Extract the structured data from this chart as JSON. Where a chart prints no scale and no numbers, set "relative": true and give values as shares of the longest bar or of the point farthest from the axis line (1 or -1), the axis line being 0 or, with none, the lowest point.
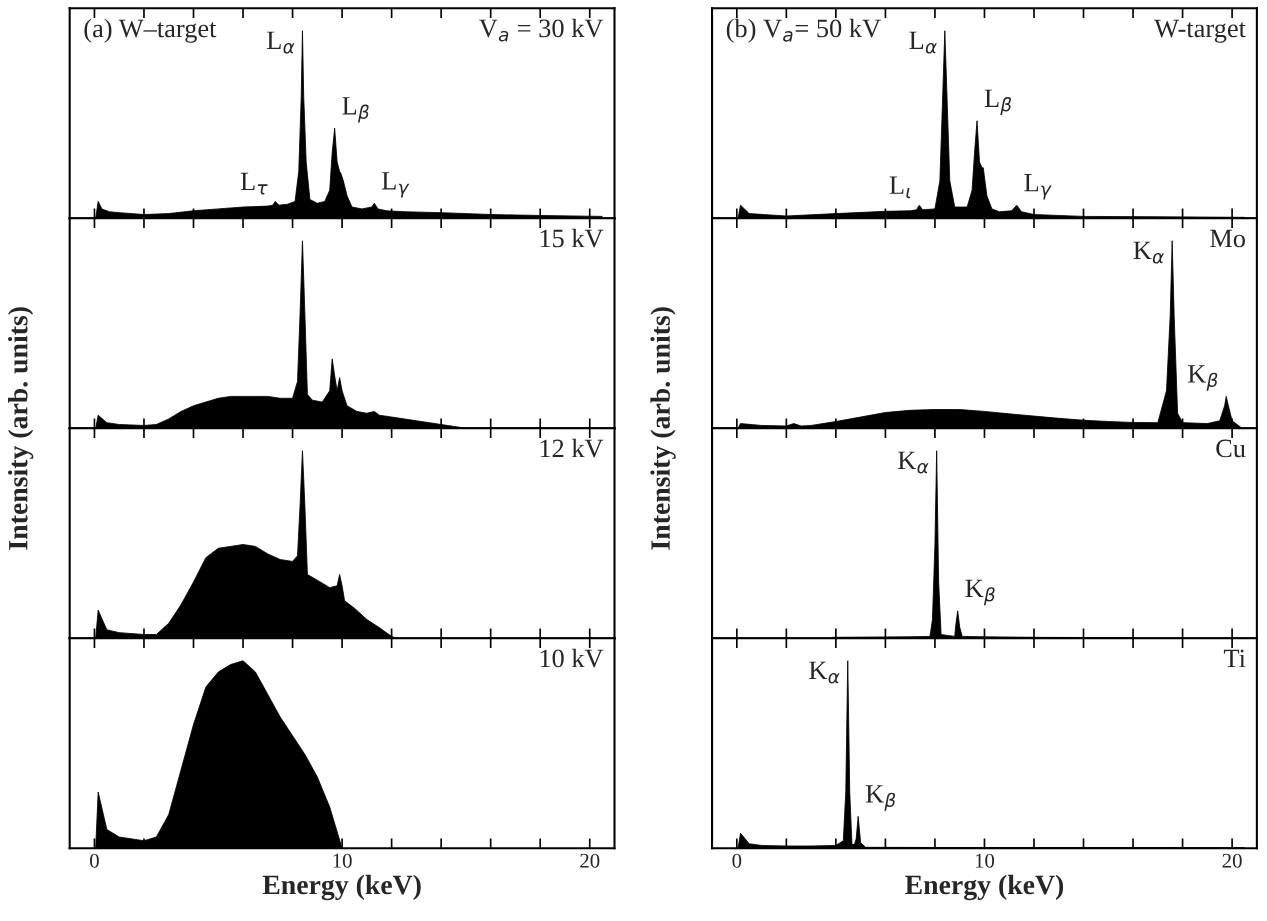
{
  "chart_data": [
    {
      "type": "area",
      "relative": true,
      "xlim": [
        -1,
        21
      ],
      "xticks": [
        0,
        {
          "value": 2,
          "label": null
        },
        {
          "value": 4,
          "label": null
        },
        {
          "value": 6,
          "label": null
        },
        {
          "value": 8,
          "label": null
        },
        10,
        {
          "value": 12,
          "label": null
        },
        {
          "value": 14,
          "label": null
        },
        {
          "value": 16,
          "label": null
        },
        {
          "value": 18,
          "label": null
        },
        20
      ],
      "tick_labels": false,
      "x": [
        0.05,
        0.15,
        0.3,
        0.6,
        1,
        2,
        3,
        4,
        5,
        6,
        7,
        7.2,
        7.3,
        7.45,
        7.8,
        8.1,
        8.25,
        8.35,
        8.4,
        8.45,
        8.55,
        8.7,
        9.0,
        9.3,
        9.5,
        9.6,
        9.7,
        9.8,
        9.9,
        9.95,
        10.05,
        10.2,
        10.4,
        10.8,
        11.2,
        11.3,
        11.45,
        11.8,
        12.5,
        14,
        16,
        18,
        20.5
      ],
      "series": [
        {
          "color": "#000000",
          "values": [
            0.0,
            0.09,
            0.05,
            0.035,
            0.03,
            0.02,
            0.025,
            0.04,
            0.05,
            0.06,
            0.065,
            0.07,
            0.09,
            0.07,
            0.075,
            0.09,
            0.25,
            0.65,
            1.0,
            0.65,
            0.3,
            0.1,
            0.08,
            0.09,
            0.15,
            0.35,
            0.48,
            0.3,
            0.25,
            0.24,
            0.2,
            0.12,
            0.06,
            0.05,
            0.06,
            0.08,
            0.05,
            0.04,
            0.035,
            0.03,
            0.02,
            0.015,
            0.01
          ]
        }
      ],
      "annotations": [
        "(a) W–target",
        "V$_{a}$ = 30 kV",
        {
          "text": "L$_{α}$",
          "x": 8.4,
          "y": 1.0
        },
        {
          "text": "L$_{β}$",
          "x": 9.7,
          "y": 0.48
        },
        {
          "text": "L$_{τ}$",
          "x": 7.3,
          "y": 0.09
        },
        {
          "text": "L$_{γ}$",
          "x": 11.3,
          "y": 0.08
        }
      ]
    },
    {
      "type": "area",
      "relative": true,
      "xlim": [
        -1,
        21
      ],
      "xticks": [
        0,
        {
          "value": 2,
          "label": null
        },
        {
          "value": 4,
          "label": null
        },
        {
          "value": 6,
          "label": null
        },
        {
          "value": 8,
          "label": null
        },
        10,
        {
          "value": 12,
          "label": null
        },
        {
          "value": 14,
          "label": null
        },
        {
          "value": 16,
          "label": null
        },
        {
          "value": 18,
          "label": null
        },
        20
      ],
      "tick_labels": false,
      "ylabel": "Intensity (arb. units)",
      "x": [
        0.05,
        0.15,
        0.5,
        1,
        2,
        2.5,
        3,
        3.5,
        4,
        4.5,
        5,
        5.5,
        6,
        6.5,
        7,
        7.5,
        8,
        8.2,
        8.3,
        8.4,
        8.5,
        8.6,
        8.8,
        9.2,
        9.5,
        9.6,
        9.7,
        9.8,
        9.9,
        10.0,
        10.2,
        10.6,
        11.0,
        11.3,
        11.5,
        12,
        13,
        14,
        15
      ],
      "series": [
        {
          "color": "#000000",
          "values": [
            0,
            0.07,
            0.03,
            0.02,
            0.015,
            0.02,
            0.05,
            0.09,
            0.12,
            0.14,
            0.16,
            0.17,
            0.17,
            0.17,
            0.17,
            0.16,
            0.16,
            0.25,
            0.6,
            1.0,
            0.6,
            0.18,
            0.15,
            0.14,
            0.2,
            0.37,
            0.28,
            0.2,
            0.27,
            0.2,
            0.12,
            0.09,
            0.08,
            0.09,
            0.07,
            0.06,
            0.04,
            0.02,
            0.0
          ]
        }
      ],
      "annotations": [
        "15 kV"
      ]
    },
    {
      "type": "area",
      "relative": true,
      "xlim": [
        -1,
        21
      ],
      "xticks": [
        0,
        {
          "value": 2,
          "label": null
        },
        {
          "value": 4,
          "label": null
        },
        {
          "value": 6,
          "label": null
        },
        {
          "value": 8,
          "label": null
        },
        10,
        {
          "value": 12,
          "label": null
        },
        {
          "value": 14,
          "label": null
        },
        {
          "value": 16,
          "label": null
        },
        {
          "value": 18,
          "label": null
        },
        20
      ],
      "tick_labels": false,
      "x": [
        0.05,
        0.15,
        0.5,
        1,
        2,
        2.5,
        3,
        3.5,
        4,
        4.5,
        5,
        5.5,
        6,
        6.5,
        7,
        7.5,
        8,
        8.2,
        8.3,
        8.4,
        8.5,
        8.6,
        9,
        9.5,
        9.8,
        9.9,
        10.0,
        10.1,
        10.5,
        11,
        11.5,
        12,
        12.2
      ],
      "series": [
        {
          "color": "#000000",
          "values": [
            0,
            0.15,
            0.045,
            0.03,
            0.02,
            0.02,
            0.08,
            0.18,
            0.3,
            0.43,
            0.48,
            0.49,
            0.5,
            0.49,
            0.45,
            0.42,
            0.41,
            0.44,
            0.7,
            1.0,
            0.7,
            0.34,
            0.31,
            0.27,
            0.28,
            0.34,
            0.28,
            0.2,
            0.16,
            0.1,
            0.057,
            0.01,
            0.0
          ]
        }
      ],
      "annotations": [
        "12 kV"
      ]
    },
    {
      "type": "area",
      "relative": true,
      "xlim": [
        -1,
        21
      ],
      "xticks": [
        0,
        {
          "value": 2,
          "label": null
        },
        {
          "value": 4,
          "label": null
        },
        {
          "value": 6,
          "label": null
        },
        {
          "value": 8,
          "label": null
        },
        10,
        {
          "value": 12,
          "label": null
        },
        {
          "value": 14,
          "label": null
        },
        {
          "value": 16,
          "label": null
        },
        {
          "value": 18,
          "label": null
        },
        20
      ],
      "tick_labels": "x",
      "xlabel": "Energy (keV)",
      "x": [
        0.05,
        0.15,
        0.5,
        1,
        2,
        2.5,
        3,
        3.5,
        4,
        4.5,
        5,
        5.5,
        6,
        6.5,
        7,
        7.5,
        8,
        8.5,
        9,
        9.5,
        10
      ],
      "series": [
        {
          "color": "#000000",
          "values": [
            0,
            0.3,
            0.1,
            0.06,
            0.04,
            0.06,
            0.18,
            0.42,
            0.66,
            0.86,
            0.94,
            0.98,
            1.0,
            0.94,
            0.82,
            0.7,
            0.6,
            0.5,
            0.38,
            0.22,
            0
          ]
        }
      ],
      "annotations": [
        "10 kV"
      ]
    },
    {
      "type": "area",
      "relative": true,
      "xlim": [
        -1,
        21
      ],
      "xticks": [
        0,
        {
          "value": 2,
          "label": null
        },
        {
          "value": 4,
          "label": null
        },
        {
          "value": 6,
          "label": null
        },
        {
          "value": 8,
          "label": null
        },
        10,
        {
          "value": 12,
          "label": null
        },
        {
          "value": 14,
          "label": null
        },
        {
          "value": 16,
          "label": null
        },
        {
          "value": 18,
          "label": null
        },
        20
      ],
      "tick_labels": false,
      "x": [
        0.05,
        0.15,
        0.5,
        2,
        4,
        6,
        7,
        7.25,
        7.37,
        7.5,
        8,
        8.2,
        8.3,
        8.4,
        8.5,
        8.6,
        8.8,
        9.3,
        9.5,
        9.6,
        9.7,
        9.8,
        9.9,
        9.95,
        10.1,
        10.3,
        10.6,
        11.1,
        11.3,
        11.5,
        12,
        14,
        17,
        20.5
      ],
      "series": [
        {
          "color": "#000000",
          "values": [
            0,
            0.07,
            0.025,
            0.012,
            0.025,
            0.037,
            0.04,
            0.045,
            0.07,
            0.045,
            0.05,
            0.2,
            0.6,
            1.0,
            0.6,
            0.2,
            0.06,
            0.06,
            0.15,
            0.35,
            0.52,
            0.3,
            0.27,
            0.27,
            0.12,
            0.05,
            0.035,
            0.04,
            0.07,
            0.035,
            0.02,
            0.01,
            0.008,
            0.005
          ]
        }
      ],
      "annotations": [
        "(b) V$_{a}$= 50 kV",
        "W-target",
        {
          "text": "L$_{α}$",
          "x": 8.4,
          "y": 1.0
        },
        {
          "text": "L$_{β}$",
          "x": 9.7,
          "y": 0.52
        },
        {
          "text": "L$_{ι}$",
          "x": 7.37,
          "y": 0.07
        },
        {
          "text": "L$_{γ}$",
          "x": 11.3,
          "y": 0.07
        }
      ]
    },
    {
      "type": "area",
      "relative": true,
      "xlim": [
        -1,
        21
      ],
      "xticks": [
        0,
        {
          "value": 2,
          "label": null
        },
        {
          "value": 4,
          "label": null
        },
        {
          "value": 6,
          "label": null
        },
        {
          "value": 8,
          "label": null
        },
        10,
        {
          "value": 12,
          "label": null
        },
        {
          "value": 14,
          "label": null
        },
        {
          "value": 16,
          "label": null
        },
        {
          "value": 18,
          "label": null
        },
        20
      ],
      "tick_labels": false,
      "ylabel": "Intensity (arb. units)",
      "x": [
        0.05,
        0.15,
        1,
        2,
        2.3,
        2.6,
        3,
        4,
        5,
        6,
        7,
        8,
        9,
        10,
        11,
        12,
        13,
        14,
        15,
        16,
        17,
        17.35,
        17.5,
        17.58,
        17.66,
        17.8,
        18,
        19,
        19.5,
        19.7,
        19.76,
        19.85,
        20.0,
        20.4
      ],
      "series": [
        {
          "color": "#000000",
          "values": [
            0,
            0.025,
            0.015,
            0.012,
            0.025,
            0.012,
            0.015,
            0.036,
            0.06,
            0.084,
            0.096,
            0.1,
            0.1,
            0.09,
            0.077,
            0.065,
            0.053,
            0.043,
            0.036,
            0.031,
            0.03,
            0.2,
            0.6,
            1.0,
            0.6,
            0.08,
            0.03,
            0.025,
            0.04,
            0.12,
            0.17,
            0.12,
            0.04,
            0.0
          ]
        }
      ],
      "annotations": [
        "Mo",
        {
          "text": "K$_{α}$",
          "x": 17.58,
          "y": 1.0
        },
        {
          "text": "K$_{β}$",
          "x": 19.76,
          "y": 0.17
        }
      ]
    },
    {
      "type": "area",
      "relative": true,
      "xlim": [
        -1,
        21
      ],
      "xticks": [
        0,
        {
          "value": 2,
          "label": null
        },
        {
          "value": 4,
          "label": null
        },
        {
          "value": 6,
          "label": null
        },
        {
          "value": 8,
          "label": null
        },
        10,
        {
          "value": 12,
          "label": null
        },
        {
          "value": 14,
          "label": null
        },
        {
          "value": 16,
          "label": null
        },
        {
          "value": 18,
          "label": null
        },
        20
      ],
      "tick_labels": false,
      "x": [
        3.86,
        5,
        6,
        7,
        7.8,
        7.9,
        8.0,
        8.07,
        8.15,
        8.25,
        8.8,
        8.85,
        8.92,
        9.0,
        9.1,
        10,
        12,
        14,
        16
      ],
      "series": [
        {
          "color": "#000000",
          "values": [
            0.005,
            0.006,
            0.007,
            0.008,
            0.01,
            0.1,
            0.5,
            1.0,
            0.3,
            0.02,
            0.01,
            0.08,
            0.146,
            0.06,
            0.01,
            0.008,
            0.005,
            0.004,
            0.003
          ]
        }
      ],
      "annotations": [
        "Cu",
        {
          "text": "K$_{α}$",
          "x": 8.07,
          "y": 1.0
        },
        {
          "text": "K$_{β}$",
          "x": 8.92,
          "y": 0.146
        }
      ]
    },
    {
      "type": "area",
      "relative": true,
      "xlim": [
        -1,
        21
      ],
      "xticks": [
        0,
        {
          "value": 2,
          "label": null
        },
        {
          "value": 4,
          "label": null
        },
        {
          "value": 6,
          "label": null
        },
        {
          "value": 8,
          "label": null
        },
        10,
        {
          "value": 12,
          "label": null
        },
        {
          "value": 14,
          "label": null
        },
        {
          "value": 16,
          "label": null
        },
        {
          "value": 18,
          "label": null
        },
        20
      ],
      "tick_labels": "x",
      "xlabel": "Energy (keV)",
      "x": [
        0.05,
        0.15,
        0.5,
        1,
        2,
        3,
        4,
        4.3,
        4.4,
        4.48,
        4.56,
        4.65,
        4.75,
        4.82,
        4.9,
        5.0,
        5.2,
        8,
        12,
        16,
        20.5
      ],
      "series": [
        {
          "color": "#000000",
          "values": [
            0,
            0.08,
            0.024,
            0.015,
            0.012,
            0.012,
            0.015,
            0.04,
            0.3,
            1.0,
            0.3,
            0.02,
            0.02,
            0.05,
            0.17,
            0.03,
            0.005,
            0.004,
            0.004,
            0.004,
            0.003
          ]
        }
      ],
      "annotations": [
        "Ti",
        {
          "text": "K$_{α}$",
          "x": 4.48,
          "y": 1.0
        },
        {
          "text": "K$_{β}$",
          "x": 4.9,
          "y": 0.17
        }
      ]
    }
  ]
}
